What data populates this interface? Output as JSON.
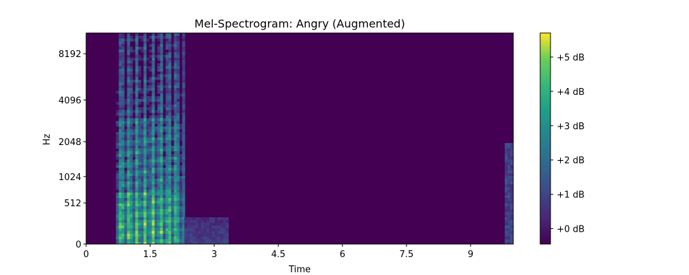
{
  "chart_data": {
    "type": "heatmap",
    "title": "Mel-Spectrogram: Angry (Augmented)",
    "xlabel": "Time",
    "ylabel": "Hz",
    "xlim": [
      0,
      10
    ],
    "x_ticks": [
      0,
      1.5,
      3,
      4.5,
      6,
      7.5,
      9
    ],
    "x_tick_labels": [
      "0",
      "1.5",
      "3",
      "4.5",
      "6",
      "7.5",
      "9"
    ],
    "y_ticks": [
      0,
      512,
      1024,
      2048,
      4096,
      8192
    ],
    "y_tick_labels": [
      "0",
      "512",
      "1024",
      "2048",
      "4096",
      "8192"
    ],
    "y_scale": "mel",
    "colormap": "viridis",
    "colorbar": {
      "range_db": [
        -0.45,
        5.7
      ],
      "ticks": [
        0,
        1,
        2,
        3,
        4,
        5
      ],
      "tick_labels": [
        "+0 dB",
        "+1 dB",
        "+2 dB",
        "+3 dB",
        "+4 dB",
        "+5 dB"
      ]
    },
    "energy_regions": [
      {
        "time_start": 0.7,
        "time_end": 2.3,
        "freq_top_hz": 11025,
        "level_db": "high"
      },
      {
        "time_start": 2.3,
        "time_end": 3.3,
        "freq_top_hz": 300,
        "level_db": "low"
      },
      {
        "time_start": 9.8,
        "time_end": 10.0,
        "freq_top_hz": 2000,
        "level_db": "low"
      }
    ]
  }
}
